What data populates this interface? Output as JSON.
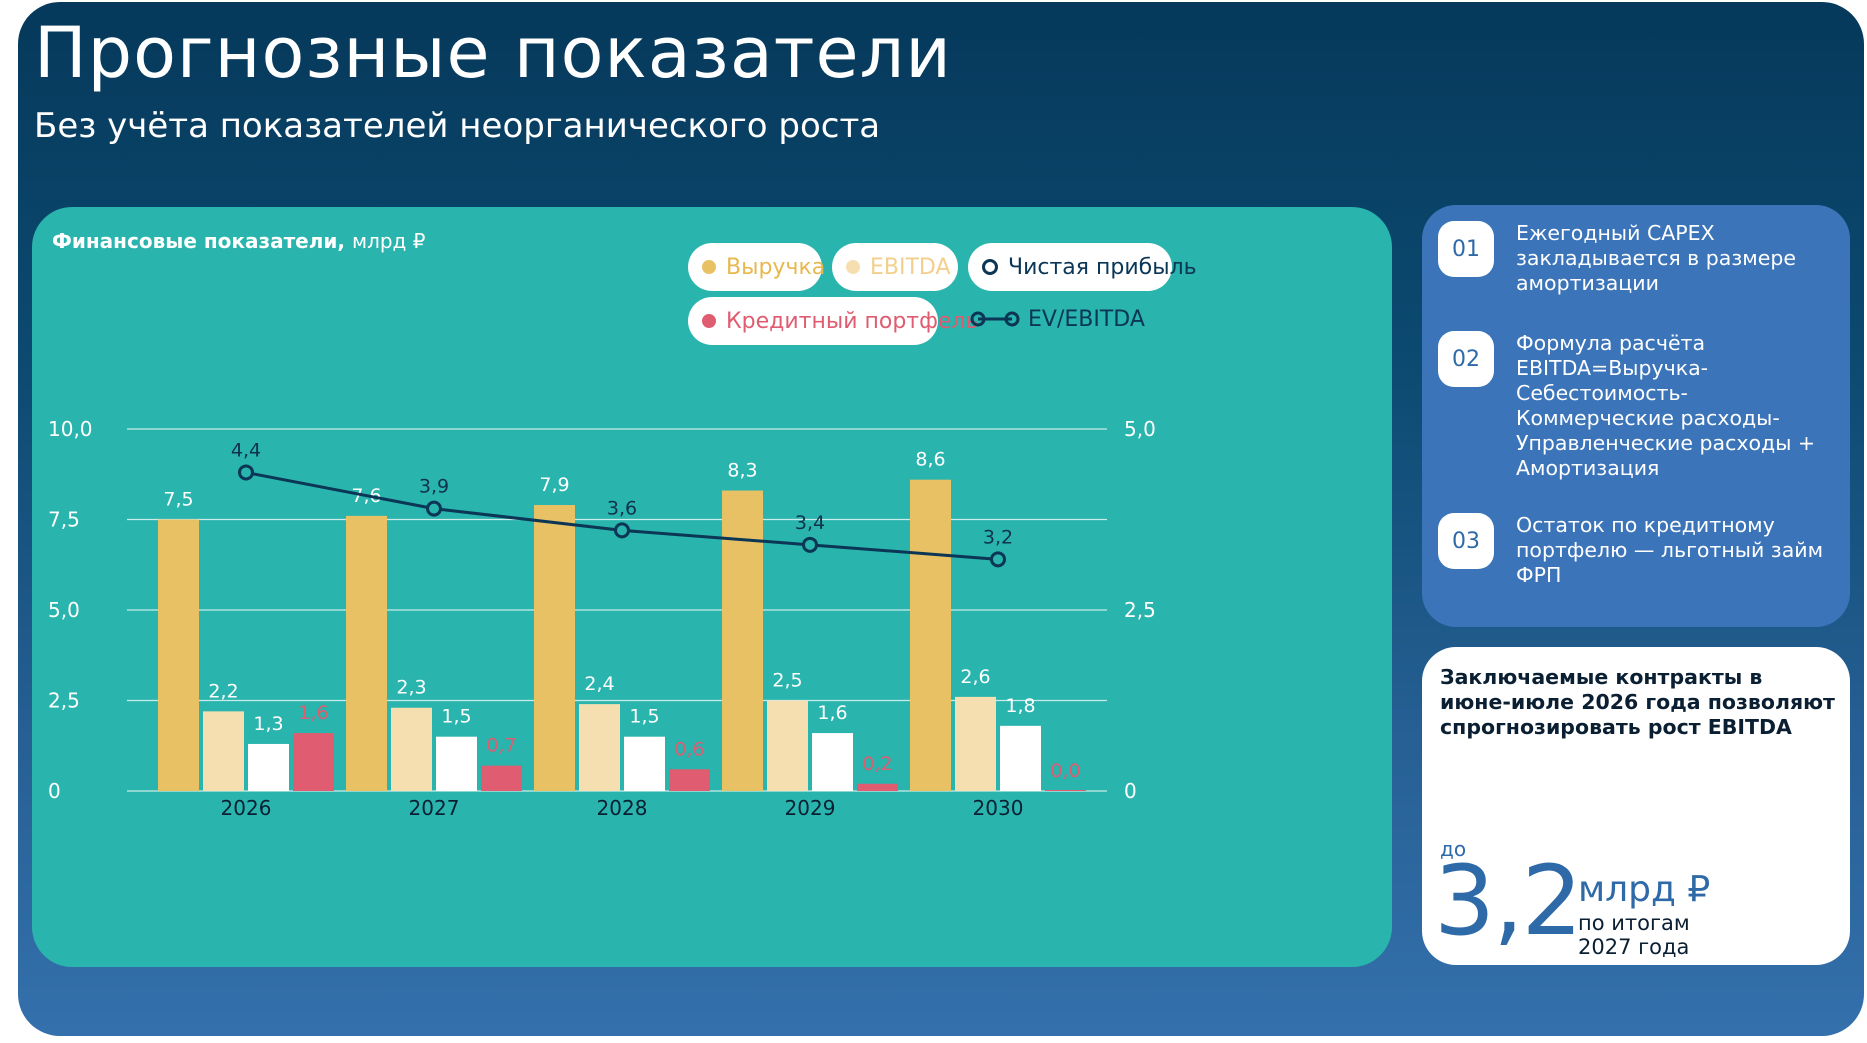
{
  "page": {
    "title": "Прогнозные показатели",
    "subtitle": "Без учёта показателей неорганического роста"
  },
  "chart_panel": {
    "caption": "Финансовые показатели,",
    "caption_unit": "млрд ₽"
  },
  "colors": {
    "revenue": "#e8c164",
    "ebitda": "#f5dfb0",
    "net_profit": "#ffffff",
    "credit": "#e05c70",
    "ev_line": "#0b3656",
    "axis_text": "#ffffff",
    "label_dark": "#10324d"
  },
  "legend": {
    "revenue": "Выручка",
    "ebitda": "EBITDA",
    "net_profit": "Чистая прибыль",
    "credit": "Кредитный портфель",
    "ev_ebitda": "EV/EBITDA"
  },
  "chart_data": {
    "type": "bar",
    "title": "Финансовые показатели, млрд ₽",
    "categories": [
      "2026",
      "2027",
      "2028",
      "2029",
      "2030"
    ],
    "series": [
      {
        "name": "Выручка",
        "values": [
          7.5,
          7.6,
          7.9,
          8.3,
          8.6
        ],
        "labels": [
          "7,5",
          "7,6",
          "7,9",
          "8,3",
          "8,6"
        ]
      },
      {
        "name": "EBITDA",
        "values": [
          2.2,
          2.3,
          2.4,
          2.5,
          2.6
        ],
        "labels": [
          "2,2",
          "2,3",
          "2,4",
          "2,5",
          "2,6"
        ]
      },
      {
        "name": "Чистая прибыль",
        "values": [
          1.3,
          1.5,
          1.5,
          1.6,
          1.8
        ],
        "labels": [
          "1,3",
          "1,5",
          "1,5",
          "1,6",
          "1,8"
        ]
      },
      {
        "name": "Кредитный портфель",
        "values": [
          1.6,
          0.7,
          0.6,
          0.2,
          0.0
        ],
        "labels": [
          "1,6",
          "0,7",
          "0,6",
          "0,2",
          "0,0"
        ]
      }
    ],
    "line_series": {
      "name": "EV/EBITDA",
      "axis": "right",
      "values": [
        4.4,
        3.9,
        3.6,
        3.4,
        3.2
      ],
      "labels": [
        "4,4",
        "3,9",
        "3,6",
        "3,4",
        "3,2"
      ]
    },
    "y_left": {
      "min": 0,
      "max": 10,
      "ticks": [
        "0",
        "2,5",
        "5,0",
        "7,5",
        "10,0"
      ]
    },
    "y_right": {
      "min": 0,
      "max": 5,
      "ticks": [
        "0",
        "2,5",
        "5,0"
      ]
    },
    "grid": true
  },
  "notes": [
    {
      "num": "01",
      "text": "Ежегодный CAPEX закладывается в размере амортизации"
    },
    {
      "num": "02",
      "text": "Формула расчёта EBITDA=Выручка-Себестоимость-Коммерческие расходы-Управленческие расходы + Амортизация"
    },
    {
      "num": "03",
      "text": "Остаток по кредитному портфелю — льготный займ ФРП"
    }
  ],
  "highlight": {
    "text": "Заключаемые контракты в июне-июле 2026 года позволяют спрогнозировать рост EBITDA",
    "prefix": "до",
    "value": "3,2",
    "unit": "млрд ₽",
    "period": "по итогам 2027 года"
  }
}
